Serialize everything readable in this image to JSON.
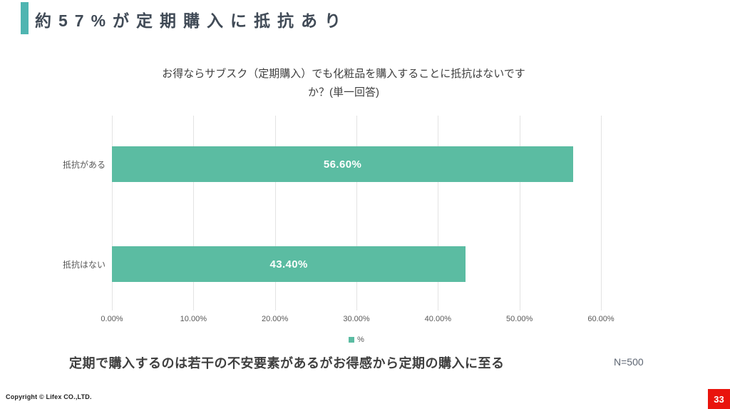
{
  "slide": {
    "title": "約57%が定期購入に抵抗あり",
    "takeaway": "定期で購入するのは若干の不安要素があるがお得感から定期の購入に至る",
    "sample_size": "N=500",
    "footer_copyright": "Copyright © Lifex CO.,LTD.",
    "page_number": "33"
  },
  "colors": {
    "accent_teal": "#4FB5B1",
    "bar_teal": "#5BBCA2",
    "title_text": "#414B57",
    "body_text": "#3F3F3F",
    "axis_text": "#595959",
    "gridline": "#E3E3E3",
    "page_red": "#E9140D",
    "value_label": "#FFFFFF"
  },
  "chart_data": {
    "type": "bar",
    "orientation": "horizontal",
    "title_lines": [
      "お得ならサブスク（定期購入）でも化粧品を購入することに抵抗はないです",
      "か？(単一回答)"
    ],
    "categories": [
      "抵抗がある",
      "抵抗はない"
    ],
    "values": [
      56.6,
      43.4
    ],
    "value_labels": [
      "56.60%",
      "43.40%"
    ],
    "x_ticks": [
      "0.00%",
      "10.00%",
      "20.00%",
      "30.00%",
      "40.00%",
      "50.00%",
      "60.00%"
    ],
    "x_tick_values": [
      0,
      10,
      20,
      30,
      40,
      50,
      60
    ],
    "xlim": [
      0,
      60
    ],
    "grid": "vertical",
    "legend": [
      {
        "label": "%",
        "color": "#5BBCA2"
      }
    ],
    "legend_position": "bottom"
  }
}
